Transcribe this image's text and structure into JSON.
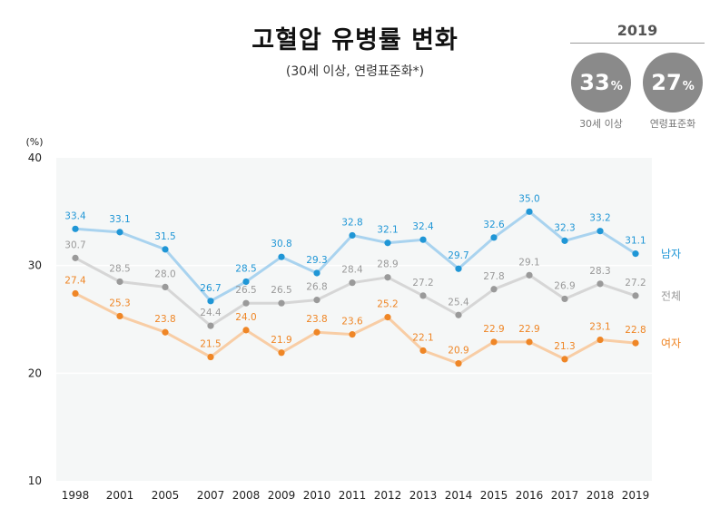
{
  "title": "고혈압 유병률 변화",
  "subtitle": "(30세 이상, 연령표준화*)",
  "kpi": {
    "year": "2019",
    "items": [
      {
        "value": "33",
        "unit": "%",
        "label": "30세 이상"
      },
      {
        "value": "27",
        "unit": "%",
        "label": "연령표준화"
      }
    ]
  },
  "colors": {
    "male_line": "#a9d3ef",
    "male_dot": "#1f96d6",
    "total_line": "#d6d6d6",
    "total_dot": "#9a9a9a",
    "female_line": "#f8cda5",
    "female_dot": "#ef8626",
    "plot_bg": "#f5f7f7"
  },
  "chart_data": {
    "type": "line",
    "ylabel": "(%)",
    "ylim": [
      10,
      40
    ],
    "yticks": [
      10,
      20,
      30,
      40
    ],
    "grid": true,
    "categories": [
      "1998",
      "2001",
      "2005",
      "2007",
      "2008",
      "2009",
      "2010",
      "2011",
      "2012",
      "2013",
      "2014",
      "2015",
      "2016",
      "2017",
      "2018",
      "2019"
    ],
    "series": [
      {
        "name": "남자",
        "key": "male",
        "values": [
          33.4,
          33.1,
          31.5,
          26.7,
          28.5,
          30.8,
          29.3,
          32.8,
          32.1,
          32.4,
          29.7,
          32.6,
          35.0,
          32.3,
          33.2,
          31.1
        ]
      },
      {
        "name": "전체",
        "key": "total",
        "values": [
          30.7,
          28.5,
          28.0,
          24.4,
          26.5,
          26.5,
          26.8,
          28.4,
          28.9,
          27.2,
          25.4,
          27.8,
          29.1,
          26.9,
          28.3,
          27.2
        ]
      },
      {
        "name": "여자",
        "key": "female",
        "values": [
          27.4,
          25.3,
          23.8,
          21.5,
          24.0,
          21.9,
          23.8,
          23.6,
          25.2,
          22.1,
          20.9,
          22.9,
          22.9,
          21.3,
          23.1,
          22.8
        ]
      }
    ]
  }
}
